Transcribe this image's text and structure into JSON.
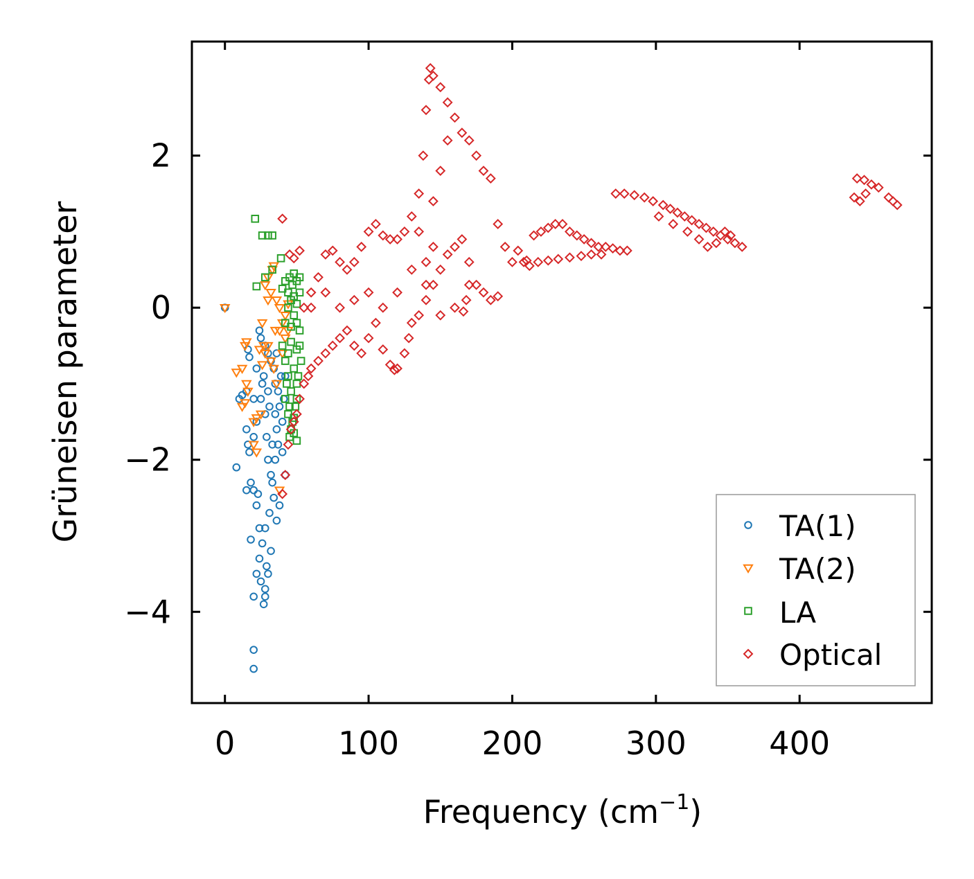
{
  "chart_data": {
    "type": "scatter",
    "title": "",
    "xlabel": "Frequency (cm",
    "xlabel_exponent": "−1",
    "xlabel_close": ")",
    "ylabel": "Grüneisen parameter",
    "xlim": [
      -23,
      492
    ],
    "ylim": [
      -5.2,
      3.5
    ],
    "xticks": [
      0,
      100,
      200,
      300,
      400
    ],
    "xtick_labels": [
      "0",
      "100",
      "200",
      "300",
      "400"
    ],
    "yticks": [
      -4,
      -2,
      0,
      2
    ],
    "ytick_labels": [
      "−4",
      "−2",
      "0",
      "2"
    ],
    "legend_position": "bottom-right",
    "grid": false,
    "series": [
      {
        "name": "TA(1)",
        "marker": "circle",
        "color": "#1f77b4",
        "points": [
          [
            0,
            0
          ],
          [
            20,
            -4.75
          ],
          [
            20,
            -4.5
          ],
          [
            20,
            -3.8
          ],
          [
            22,
            -3.5
          ],
          [
            24,
            -3.3
          ],
          [
            25,
            -3.6
          ],
          [
            27,
            -3.9
          ],
          [
            28,
            -3.7
          ],
          [
            26,
            -3.1
          ],
          [
            29,
            -3.4
          ],
          [
            28,
            -2.9
          ],
          [
            24,
            -2.9
          ],
          [
            22,
            -2.6
          ],
          [
            18,
            -3.05
          ],
          [
            23,
            -2.45
          ],
          [
            20,
            -2.4
          ],
          [
            15,
            -2.4
          ],
          [
            18,
            -2.3
          ],
          [
            8,
            -2.1
          ],
          [
            17,
            -1.9
          ],
          [
            16,
            -1.8
          ],
          [
            15,
            -1.6
          ],
          [
            20,
            -1.7
          ],
          [
            22,
            -1.5
          ],
          [
            25,
            -1.2
          ],
          [
            10,
            -1.2
          ],
          [
            12,
            -1.15
          ],
          [
            15,
            -1.1
          ],
          [
            20,
            -1.2
          ],
          [
            17,
            -0.65
          ],
          [
            16,
            -0.55
          ],
          [
            22,
            -0.8
          ],
          [
            24,
            -0.3
          ],
          [
            25,
            -0.4
          ],
          [
            28,
            -0.5
          ],
          [
            30,
            -0.6
          ],
          [
            32,
            -0.7
          ],
          [
            34,
            -0.8
          ],
          [
            35,
            -1.0
          ],
          [
            38,
            -1.3
          ],
          [
            40,
            -1.5
          ],
          [
            42,
            -2.2
          ],
          [
            38,
            -2.6
          ],
          [
            36,
            -2.8
          ],
          [
            34,
            -2.5
          ],
          [
            32,
            -2.2
          ],
          [
            30,
            -2.0
          ],
          [
            33,
            -1.8
          ],
          [
            36,
            -1.6
          ],
          [
            28,
            -1.4
          ],
          [
            30,
            -1.1
          ],
          [
            26,
            -1.0
          ],
          [
            27,
            -0.9
          ],
          [
            31,
            -1.3
          ],
          [
            29,
            -1.7
          ],
          [
            35,
            -1.4
          ],
          [
            37,
            -1.1
          ],
          [
            39,
            -0.9
          ],
          [
            32,
            -3.2
          ],
          [
            30,
            -3.5
          ],
          [
            28,
            -3.8
          ],
          [
            31,
            -2.7
          ],
          [
            33,
            -2.3
          ],
          [
            35,
            -2.0
          ],
          [
            37,
            -1.8
          ],
          [
            40,
            -1.9
          ],
          [
            41,
            -1.2
          ],
          [
            42,
            -0.9
          ],
          [
            36,
            -0.6
          ]
        ]
      },
      {
        "name": "TA(2)",
        "marker": "triangle",
        "color": "#ff7f0e",
        "points": [
          [
            0,
            0
          ],
          [
            14,
            -0.5
          ],
          [
            15,
            -0.45
          ],
          [
            12,
            -0.8
          ],
          [
            8,
            -0.85
          ],
          [
            15,
            -1.0
          ],
          [
            14,
            -1.25
          ],
          [
            12,
            -1.3
          ],
          [
            16,
            -1.1
          ],
          [
            20,
            -1.5
          ],
          [
            22,
            -1.9
          ],
          [
            20,
            -1.8
          ],
          [
            22,
            -1.45
          ],
          [
            25,
            -1.4
          ],
          [
            24,
            -0.55
          ],
          [
            27,
            -0.5
          ],
          [
            26,
            -0.2
          ],
          [
            30,
            0.1
          ],
          [
            32,
            0.2
          ],
          [
            28,
            0.3
          ],
          [
            30,
            0.4
          ],
          [
            33,
            0.5
          ],
          [
            34,
            0.55
          ],
          [
            36,
            0.1
          ],
          [
            38,
            0.0
          ],
          [
            40,
            -0.2
          ],
          [
            42,
            -0.1
          ],
          [
            44,
            -0.3
          ],
          [
            38,
            -2.4
          ],
          [
            36,
            -1.0
          ],
          [
            34,
            -0.8
          ],
          [
            32,
            -0.7
          ],
          [
            30,
            -0.5
          ],
          [
            28,
            -0.6
          ],
          [
            26,
            -0.75
          ],
          [
            40,
            -0.6
          ],
          [
            42,
            -0.4
          ],
          [
            44,
            0.05
          ],
          [
            38,
            -0.3
          ],
          [
            35,
            -0.3
          ]
        ]
      },
      {
        "name": "LA",
        "marker": "square",
        "color": "#2ca02c",
        "points": [
          [
            21,
            1.17
          ],
          [
            26,
            0.95
          ],
          [
            30,
            0.95
          ],
          [
            33,
            0.95
          ],
          [
            39,
            0.65
          ],
          [
            33,
            0.5
          ],
          [
            28,
            0.4
          ],
          [
            22,
            0.28
          ],
          [
            40,
            0.25
          ],
          [
            42,
            0.35
          ],
          [
            45,
            0.4
          ],
          [
            48,
            0.45
          ],
          [
            50,
            0.35
          ],
          [
            52,
            0.2
          ],
          [
            46,
            0.1
          ],
          [
            44,
            0.0
          ],
          [
            48,
            -0.1
          ],
          [
            50,
            -0.2
          ],
          [
            52,
            -0.3
          ],
          [
            46,
            -0.45
          ],
          [
            44,
            -0.6
          ],
          [
            48,
            -0.8
          ],
          [
            50,
            -1.0
          ],
          [
            46,
            -1.1
          ],
          [
            50,
            -1.2
          ],
          [
            45,
            -1.3
          ],
          [
            48,
            -1.45
          ],
          [
            46,
            -1.6
          ],
          [
            48,
            -1.65
          ],
          [
            50,
            -1.75
          ],
          [
            44,
            -1.4
          ],
          [
            42,
            -1.2
          ],
          [
            44,
            -0.9
          ],
          [
            42,
            -0.7
          ],
          [
            40,
            -0.5
          ],
          [
            42,
            -0.2
          ],
          [
            44,
            0.2
          ],
          [
            47,
            0.3
          ],
          [
            50,
            0.05
          ],
          [
            52,
            -0.5
          ],
          [
            53,
            -0.7
          ],
          [
            51,
            -0.9
          ],
          [
            49,
            -1.3
          ],
          [
            47,
            -1.5
          ],
          [
            45,
            -1.7
          ],
          [
            52,
            0.4
          ],
          [
            48,
            0.15
          ],
          [
            46,
            -0.25
          ],
          [
            50,
            -0.55
          ],
          [
            43,
            -1.0
          ]
        ]
      },
      {
        "name": "Optical",
        "marker": "diamond",
        "color": "#d62728",
        "points": [
          [
            40,
            1.17
          ],
          [
            45,
            0.7
          ],
          [
            52,
            0.75
          ],
          [
            48,
            0.65
          ],
          [
            40,
            -2.45
          ],
          [
            42,
            -2.2
          ],
          [
            44,
            -1.8
          ],
          [
            46,
            -1.6
          ],
          [
            48,
            -1.5
          ],
          [
            50,
            -1.4
          ],
          [
            52,
            -1.2
          ],
          [
            55,
            -1.0
          ],
          [
            58,
            -0.9
          ],
          [
            60,
            -0.8
          ],
          [
            65,
            -0.7
          ],
          [
            70,
            -0.6
          ],
          [
            75,
            -0.5
          ],
          [
            80,
            -0.4
          ],
          [
            85,
            -0.3
          ],
          [
            90,
            -0.5
          ],
          [
            95,
            -0.6
          ],
          [
            100,
            -0.4
          ],
          [
            105,
            -0.2
          ],
          [
            110,
            -0.55
          ],
          [
            115,
            -0.75
          ],
          [
            118,
            -0.82
          ],
          [
            120,
            -0.8
          ],
          [
            125,
            -0.6
          ],
          [
            128,
            -0.4
          ],
          [
            130,
            -0.2
          ],
          [
            135,
            -0.1
          ],
          [
            140,
            0.1
          ],
          [
            145,
            0.3
          ],
          [
            150,
            0.5
          ],
          [
            155,
            0.7
          ],
          [
            160,
            0.8
          ],
          [
            165,
            0.9
          ],
          [
            170,
            0.6
          ],
          [
            175,
            0.3
          ],
          [
            180,
            0.2
          ],
          [
            185,
            0.1
          ],
          [
            190,
            0.15
          ],
          [
            55,
            0.0
          ],
          [
            60,
            0.2
          ],
          [
            65,
            0.4
          ],
          [
            70,
            0.7
          ],
          [
            75,
            0.75
          ],
          [
            80,
            0.6
          ],
          [
            85,
            0.5
          ],
          [
            90,
            0.6
          ],
          [
            95,
            0.8
          ],
          [
            100,
            1.0
          ],
          [
            105,
            1.1
          ],
          [
            110,
            0.95
          ],
          [
            115,
            0.9
          ],
          [
            120,
            0.9
          ],
          [
            125,
            1.0
          ],
          [
            130,
            1.2
          ],
          [
            135,
            1.5
          ],
          [
            138,
            2.0
          ],
          [
            140,
            2.6
          ],
          [
            142,
            3.0
          ],
          [
            143,
            3.15
          ],
          [
            145,
            3.05
          ],
          [
            150,
            2.9
          ],
          [
            155,
            2.7
          ],
          [
            160,
            2.5
          ],
          [
            165,
            2.3
          ],
          [
            170,
            2.2
          ],
          [
            175,
            2.0
          ],
          [
            180,
            1.8
          ],
          [
            185,
            1.7
          ],
          [
            190,
            1.1
          ],
          [
            195,
            0.8
          ],
          [
            200,
            0.6
          ],
          [
            170,
            0.3
          ],
          [
            160,
            0.0
          ],
          [
            150,
            -0.1
          ],
          [
            140,
            0.3
          ],
          [
            130,
            0.5
          ],
          [
            120,
            0.2
          ],
          [
            110,
            0.0
          ],
          [
            100,
            0.2
          ],
          [
            90,
            0.1
          ],
          [
            80,
            0.0
          ],
          [
            70,
            0.2
          ],
          [
            60,
            0.0
          ],
          [
            135,
            1.0
          ],
          [
            145,
            1.4
          ],
          [
            150,
            1.8
          ],
          [
            155,
            2.2
          ],
          [
            145,
            0.8
          ],
          [
            140,
            0.6
          ],
          [
            168,
            0.1
          ],
          [
            166,
            -0.05
          ],
          [
            204,
            0.75
          ],
          [
            208,
            0.6
          ],
          [
            212,
            0.55
          ],
          [
            215,
            0.95
          ],
          [
            220,
            1.0
          ],
          [
            225,
            1.05
          ],
          [
            230,
            1.1
          ],
          [
            235,
            1.1
          ],
          [
            240,
            1.0
          ],
          [
            245,
            0.95
          ],
          [
            250,
            0.9
          ],
          [
            255,
            0.85
          ],
          [
            260,
            0.8
          ],
          [
            265,
            0.8
          ],
          [
            270,
            0.78
          ],
          [
            275,
            0.75
          ],
          [
            280,
            0.75
          ],
          [
            262,
            0.7
          ],
          [
            255,
            0.7
          ],
          [
            248,
            0.68
          ],
          [
            240,
            0.66
          ],
          [
            232,
            0.64
          ],
          [
            225,
            0.62
          ],
          [
            218,
            0.6
          ],
          [
            210,
            0.62
          ],
          [
            272,
            1.5
          ],
          [
            278,
            1.5
          ],
          [
            285,
            1.48
          ],
          [
            292,
            1.45
          ],
          [
            298,
            1.4
          ],
          [
            305,
            1.35
          ],
          [
            310,
            1.3
          ],
          [
            315,
            1.25
          ],
          [
            320,
            1.2
          ],
          [
            325,
            1.15
          ],
          [
            330,
            1.1
          ],
          [
            335,
            1.05
          ],
          [
            340,
            1.0
          ],
          [
            345,
            0.95
          ],
          [
            350,
            0.9
          ],
          [
            355,
            0.85
          ],
          [
            360,
            0.8
          ],
          [
            342,
            0.85
          ],
          [
            336,
            0.8
          ],
          [
            330,
            0.9
          ],
          [
            322,
            1.0
          ],
          [
            312,
            1.1
          ],
          [
            302,
            1.2
          ],
          [
            348,
            1.0
          ],
          [
            352,
            0.95
          ],
          [
            440,
            1.7
          ],
          [
            445,
            1.68
          ],
          [
            450,
            1.62
          ],
          [
            455,
            1.58
          ],
          [
            442,
            1.4
          ],
          [
            438,
            1.45
          ],
          [
            446,
            1.5
          ],
          [
            465,
            1.4
          ],
          [
            468,
            1.35
          ],
          [
            462,
            1.45
          ]
        ]
      }
    ]
  }
}
